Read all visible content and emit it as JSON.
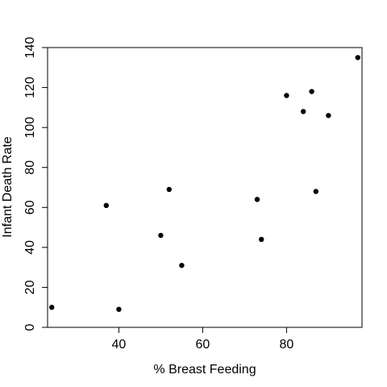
{
  "chart_data": {
    "type": "scatter",
    "title": "",
    "xlabel": "% Breast Feeding",
    "ylabel": "Infant Death Rate",
    "xlim": [
      23,
      98
    ],
    "ylim": [
      0,
      140
    ],
    "x_ticks": [
      40,
      60,
      80
    ],
    "y_ticks": [
      0,
      20,
      40,
      60,
      80,
      100,
      120,
      140
    ],
    "grid": false,
    "legend": "none",
    "point_color": "#000000",
    "points": [
      {
        "x": 24,
        "y": 10
      },
      {
        "x": 37,
        "y": 61
      },
      {
        "x": 40,
        "y": 9
      },
      {
        "x": 50,
        "y": 46
      },
      {
        "x": 52,
        "y": 69
      },
      {
        "x": 55,
        "y": 31
      },
      {
        "x": 73,
        "y": 64
      },
      {
        "x": 74,
        "y": 44
      },
      {
        "x": 80,
        "y": 116
      },
      {
        "x": 84,
        "y": 108
      },
      {
        "x": 86,
        "y": 118
      },
      {
        "x": 87,
        "y": 68
      },
      {
        "x": 90,
        "y": 106
      },
      {
        "x": 97,
        "y": 135
      }
    ]
  }
}
